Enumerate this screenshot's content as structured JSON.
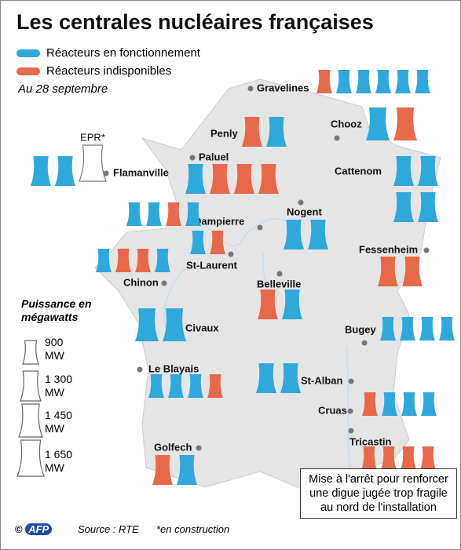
{
  "header": {
    "title": "Les centrales nucléaires françaises",
    "legend": [
      {
        "label": "Réacteurs en fonctionnement",
        "color": "#2fa8dc"
      },
      {
        "label": "Réacteurs indisponibles",
        "color": "#e8694a"
      }
    ],
    "date": "Au 28 septembre"
  },
  "power_legend": {
    "title": "Puissance en mégawatts",
    "unit": "MW",
    "sizes": [
      {
        "value": 900,
        "label": "900"
      },
      {
        "value": 1300,
        "label": "1 300"
      },
      {
        "value": 1450,
        "label": "1 450"
      },
      {
        "value": 1650,
        "label": "1 650"
      }
    ]
  },
  "plants": [
    {
      "name": "Gravelines",
      "reactors": [
        {
          "color": "#e8694a",
          "mw": 900
        },
        {
          "color": "#2fa8dc",
          "mw": 900
        },
        {
          "color": "#2fa8dc",
          "mw": 900
        },
        {
          "color": "#2fa8dc",
          "mw": 900
        },
        {
          "color": "#2fa8dc",
          "mw": 900
        },
        {
          "color": "#2fa8dc",
          "mw": 900
        }
      ]
    },
    {
      "name": "Penly",
      "reactors": [
        {
          "color": "#e8694a",
          "mw": 1300
        },
        {
          "color": "#2fa8dc",
          "mw": 1300
        }
      ]
    },
    {
      "name": "Chooz",
      "reactors": [
        {
          "color": "#2fa8dc",
          "mw": 1450
        },
        {
          "color": "#e8694a",
          "mw": 1450
        }
      ]
    },
    {
      "name": "Flamanville",
      "reactors": [
        {
          "color": "#2fa8dc",
          "mw": 1300
        },
        {
          "color": "#2fa8dc",
          "mw": 1300
        },
        {
          "color": "#ffffff",
          "mw": 1650,
          "label": "EPR*"
        }
      ]
    },
    {
      "name": "Paluel",
      "reactors": [
        {
          "color": "#2fa8dc",
          "mw": 1300
        },
        {
          "color": "#e8694a",
          "mw": 1300
        },
        {
          "color": "#e8694a",
          "mw": 1300
        },
        {
          "color": "#e8694a",
          "mw": 1300
        }
      ]
    },
    {
      "name": "Cattenom",
      "reactors": [
        {
          "color": "#2fa8dc",
          "mw": 1300
        },
        {
          "color": "#2fa8dc",
          "mw": 1300
        },
        {
          "color": "#2fa8dc",
          "mw": 1300
        },
        {
          "color": "#2fa8dc",
          "mw": 1300
        }
      ]
    },
    {
      "name": "Dampierre",
      "reactors": [
        {
          "color": "#2fa8dc",
          "mw": 900
        },
        {
          "color": "#2fa8dc",
          "mw": 900
        },
        {
          "color": "#e8694a",
          "mw": 900
        },
        {
          "color": "#2fa8dc",
          "mw": 900
        }
      ]
    },
    {
      "name": "Nogent",
      "reactors": [
        {
          "color": "#2fa8dc",
          "mw": 1300
        },
        {
          "color": "#2fa8dc",
          "mw": 1300
        }
      ]
    },
    {
      "name": "St-Laurent",
      "reactors": [
        {
          "color": "#2fa8dc",
          "mw": 900
        },
        {
          "color": "#e8694a",
          "mw": 900
        }
      ]
    },
    {
      "name": "Chinon",
      "reactors": [
        {
          "color": "#2fa8dc",
          "mw": 900
        },
        {
          "color": "#e8694a",
          "mw": 900
        },
        {
          "color": "#e8694a",
          "mw": 900
        },
        {
          "color": "#2fa8dc",
          "mw": 900
        }
      ]
    },
    {
      "name": "Fessenheim",
      "reactors": [
        {
          "color": "#e8694a",
          "mw": 1300
        },
        {
          "color": "#e8694a",
          "mw": 1300
        }
      ]
    },
    {
      "name": "Belleville",
      "reactors": [
        {
          "color": "#e8694a",
          "mw": 1300
        },
        {
          "color": "#2fa8dc",
          "mw": 1300
        }
      ]
    },
    {
      "name": "Civaux",
      "reactors": [
        {
          "color": "#2fa8dc",
          "mw": 1450
        },
        {
          "color": "#2fa8dc",
          "mw": 1450
        }
      ]
    },
    {
      "name": "Bugey",
      "reactors": [
        {
          "color": "#2fa8dc",
          "mw": 900
        },
        {
          "color": "#2fa8dc",
          "mw": 900
        },
        {
          "color": "#2fa8dc",
          "mw": 900
        },
        {
          "color": "#2fa8dc",
          "mw": 900
        }
      ]
    },
    {
      "name": "Le Blayais",
      "reactors": [
        {
          "color": "#2fa8dc",
          "mw": 900
        },
        {
          "color": "#2fa8dc",
          "mw": 900
        },
        {
          "color": "#2fa8dc",
          "mw": 900
        },
        {
          "color": "#e8694a",
          "mw": 900
        }
      ]
    },
    {
      "name": "St-Alban",
      "reactors": [
        {
          "color": "#2fa8dc",
          "mw": 1300
        },
        {
          "color": "#2fa8dc",
          "mw": 1300
        }
      ]
    },
    {
      "name": "Cruas",
      "reactors": [
        {
          "color": "#e8694a",
          "mw": 900
        },
        {
          "color": "#2fa8dc",
          "mw": 900
        },
        {
          "color": "#2fa8dc",
          "mw": 900
        },
        {
          "color": "#2fa8dc",
          "mw": 900
        }
      ]
    },
    {
      "name": "Tricastin",
      "reactors": [
        {
          "color": "#e8694a",
          "mw": 900
        },
        {
          "color": "#e8694a",
          "mw": 900
        },
        {
          "color": "#e8694a",
          "mw": 900
        },
        {
          "color": "#e8694a",
          "mw": 900
        }
      ]
    },
    {
      "name": "Golfech",
      "reactors": [
        {
          "color": "#e8694a",
          "mw": 1300
        },
        {
          "color": "#2fa8dc",
          "mw": 1300
        }
      ]
    }
  ],
  "annotation": "Mise à l'arrêt pour renforcer une digue jugée trop fragile au nord de l'installation",
  "footer": {
    "credit": "©",
    "logo": "AFP",
    "source": "Source : RTE",
    "note": "*en construction"
  }
}
